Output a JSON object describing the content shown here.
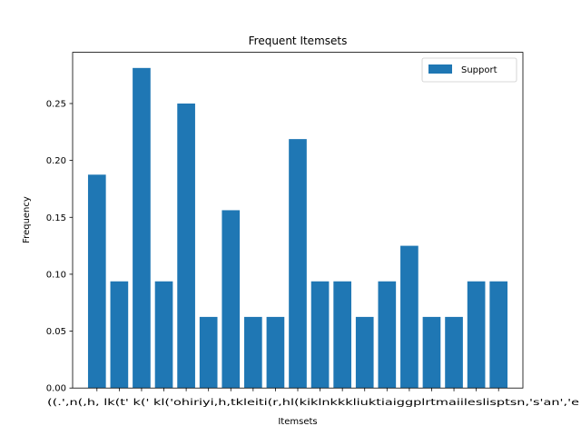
{
  "chart_data": {
    "type": "bar",
    "title": "Frequent Itemsets",
    "xlabel": "Itemsets",
    "ylabel": "Frequency",
    "ylim": [
      0,
      0.295
    ],
    "yticks": [
      "0.00",
      "0.05",
      "0.10",
      "0.15",
      "0.20",
      "0.25"
    ],
    "grid": false,
    "legend_placement": "top-right",
    "series": [
      {
        "name": "Support",
        "color": "#1f77b4",
        "values": [
          0.1875,
          0.09375,
          0.28125,
          0.09375,
          0.25,
          0.0625,
          0.15625,
          0.0625,
          0.0625,
          0.21875,
          0.09375,
          0.09375,
          0.0625,
          0.09375,
          0.125,
          0.0625,
          0.0625,
          0.09375,
          0.09375
        ]
      }
    ],
    "category_labels_text": "((.',n(,h, lk(t' k(' kl('ohiriyi,h,tkleiti(r,hl(kiklnkkkliuktiaiggplrtmaiileslisptsn,'s'an','e"
  }
}
